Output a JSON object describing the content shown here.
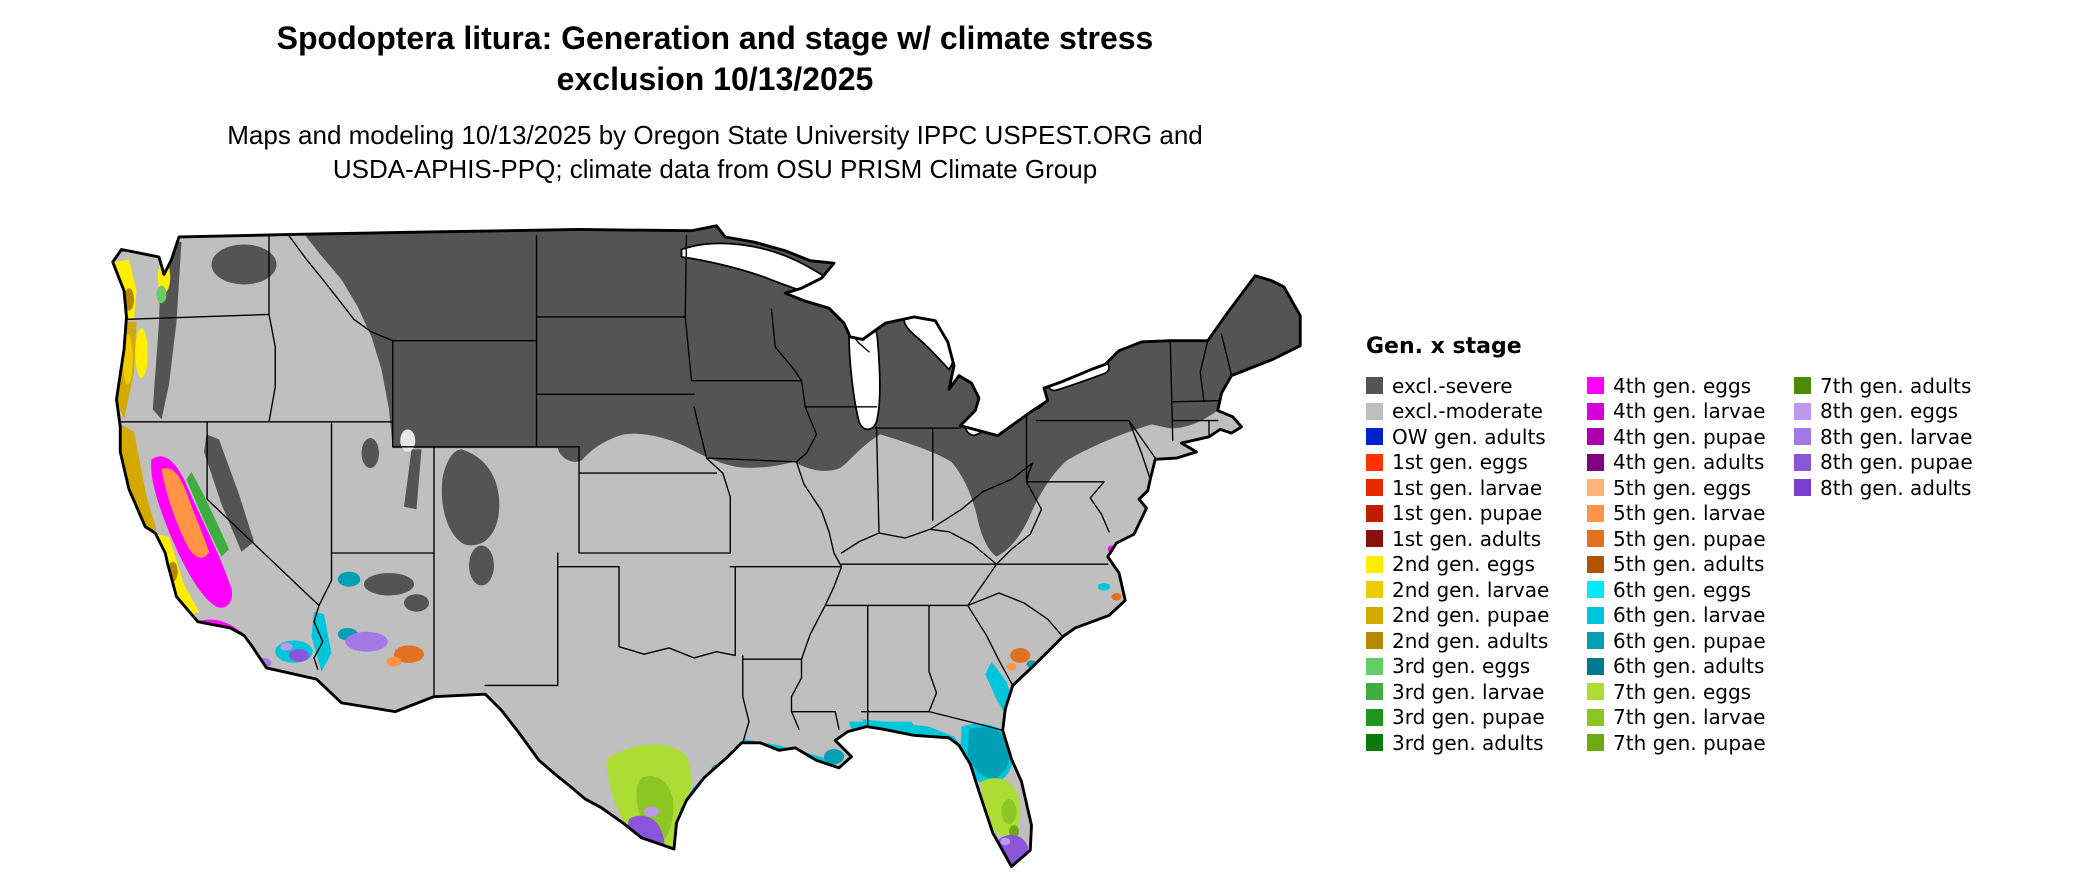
{
  "title": {
    "line1": "Spodoptera litura: Generation and stage w/ climate stress",
    "line2": "exclusion 10/13/2025"
  },
  "subtitle": {
    "line1": "Maps and modeling 10/13/2025 by Oregon State University IPPC USPEST.ORG and",
    "line2": "USDA-APHIS-PPQ; climate data from OSU PRISM Climate Group"
  },
  "legend": {
    "title": "Gen. x stage",
    "color_index": {
      "sev": "#545454",
      "mod": "#bfbfbf",
      "ow": "#0022cc",
      "g1e": "#ff3300",
      "g1l": "#e62b00",
      "g1p": "#bf1d00",
      "g1a": "#8b0f0f",
      "g2e": "#ffee00",
      "g2l": "#eecc00",
      "g2p": "#d4aa00",
      "g2a": "#b88700",
      "g3e": "#66cc66",
      "g3l": "#40ad40",
      "g3p": "#1f941f",
      "g3a": "#0a7a0a",
      "g4e": "#ff00ff",
      "g4l": "#d800d8",
      "g4p": "#ab00ab",
      "g4a": "#7d0582",
      "g5e": "#ffb377",
      "g5l": "#ff9447",
      "g5p": "#e07220",
      "g5a": "#b35305",
      "g6e": "#00eaff",
      "g6l": "#00c6dc",
      "g6p": "#00a0b4",
      "g6a": "#00798e",
      "g7e": "#abdd34",
      "g7l": "#8cc622",
      "g7p": "#6ea913",
      "g7a": "#4f8a04",
      "g8e": "#bb99ee",
      "g8l": "#a478e6",
      "g8p": "#8a55d9",
      "g8a": "#7a3fd0",
      "water": "#ffffff"
    },
    "columns": [
      [
        {
          "key": "sev",
          "label": "excl.-severe"
        },
        {
          "key": "mod",
          "label": "excl.-moderate"
        },
        {
          "key": "ow",
          "label": "OW gen. adults"
        },
        {
          "key": "g1e",
          "label": "1st gen. eggs"
        },
        {
          "key": "g1l",
          "label": "1st gen. larvae"
        },
        {
          "key": "g1p",
          "label": "1st gen. pupae"
        },
        {
          "key": "g1a",
          "label": "1st gen. adults"
        },
        {
          "key": "g2e",
          "label": "2nd gen. eggs"
        },
        {
          "key": "g2l",
          "label": "2nd gen. larvae"
        },
        {
          "key": "g2p",
          "label": "2nd gen. pupae"
        },
        {
          "key": "g2a",
          "label": "2nd gen. adults"
        },
        {
          "key": "g3e",
          "label": "3rd gen. eggs"
        },
        {
          "key": "g3l",
          "label": "3rd gen. larvae"
        },
        {
          "key": "g3p",
          "label": "3rd gen. pupae"
        },
        {
          "key": "g3a",
          "label": "3rd gen. adults"
        }
      ],
      [
        {
          "key": "g4e",
          "label": "4th gen. eggs"
        },
        {
          "key": "g4l",
          "label": "4th gen. larvae"
        },
        {
          "key": "g4p",
          "label": "4th gen. pupae"
        },
        {
          "key": "g4a",
          "label": "4th gen. adults"
        },
        {
          "key": "g5e",
          "label": "5th gen. eggs"
        },
        {
          "key": "g5l",
          "label": "5th gen. larvae"
        },
        {
          "key": "g5p",
          "label": "5th gen. pupae"
        },
        {
          "key": "g5a",
          "label": "5th gen. adults"
        },
        {
          "key": "g6e",
          "label": "6th gen. eggs"
        },
        {
          "key": "g6l",
          "label": "6th gen. larvae"
        },
        {
          "key": "g6p",
          "label": "6th gen. pupae"
        },
        {
          "key": "g6a",
          "label": "6th gen. adults"
        },
        {
          "key": "g7e",
          "label": "7th gen. eggs"
        },
        {
          "key": "g7l",
          "label": "7th gen. larvae"
        },
        {
          "key": "g7p",
          "label": "7th gen. pupae"
        }
      ],
      [
        {
          "key": "g7a",
          "label": "7th gen. adults"
        },
        {
          "key": "g8e",
          "label": "8th gen. eggs"
        },
        {
          "key": "g8l",
          "label": "8th gen. larvae"
        },
        {
          "key": "g8p",
          "label": "8th gen. pupae"
        },
        {
          "key": "g8a",
          "label": "8th gen. adults"
        }
      ]
    ]
  },
  "map": {
    "area": "Continental United States",
    "notable_regions": [
      {
        "area": "Northern tier and mountain West (MT, ND, SD, MN, WI, MI, New England, Rockies, Cascades, Sierra)",
        "category": "excl.-severe"
      },
      {
        "area": "Central US, Great Plains, interior Southeast",
        "category": "excl.-moderate"
      },
      {
        "area": "California Central Valley and southern California coast",
        "category": "4th gen. stages (magenta) with 5th gen. (orange) core"
      },
      {
        "area": "Pacific Northwest coast and valleys",
        "category": "2nd-3rd gen. stages (yellow/gold/green)"
      },
      {
        "area": "Desert Southwest (Imperial Valley, Yuma, Phoenix, Las Vegas)",
        "category": "6th and 8th gen. stages (cyan/teal/purple)"
      },
      {
        "area": "Gulf Coast from Texas to Florida panhandle",
        "category": "6th gen. stages (cyan/teal)"
      },
      {
        "area": "South Texas",
        "category": "7th gen. stages (yellow-green/green) with 8th gen. (purple) at the tip"
      },
      {
        "area": "Central Florida",
        "category": "7th gen. stages"
      },
      {
        "area": "South Florida and Keys",
        "category": "8th gen. stages (purple)"
      },
      {
        "area": "Coastal Georgia / South Carolina",
        "category": "6th gen. stages with isolated 5th gen. (orange) patch"
      }
    ]
  }
}
